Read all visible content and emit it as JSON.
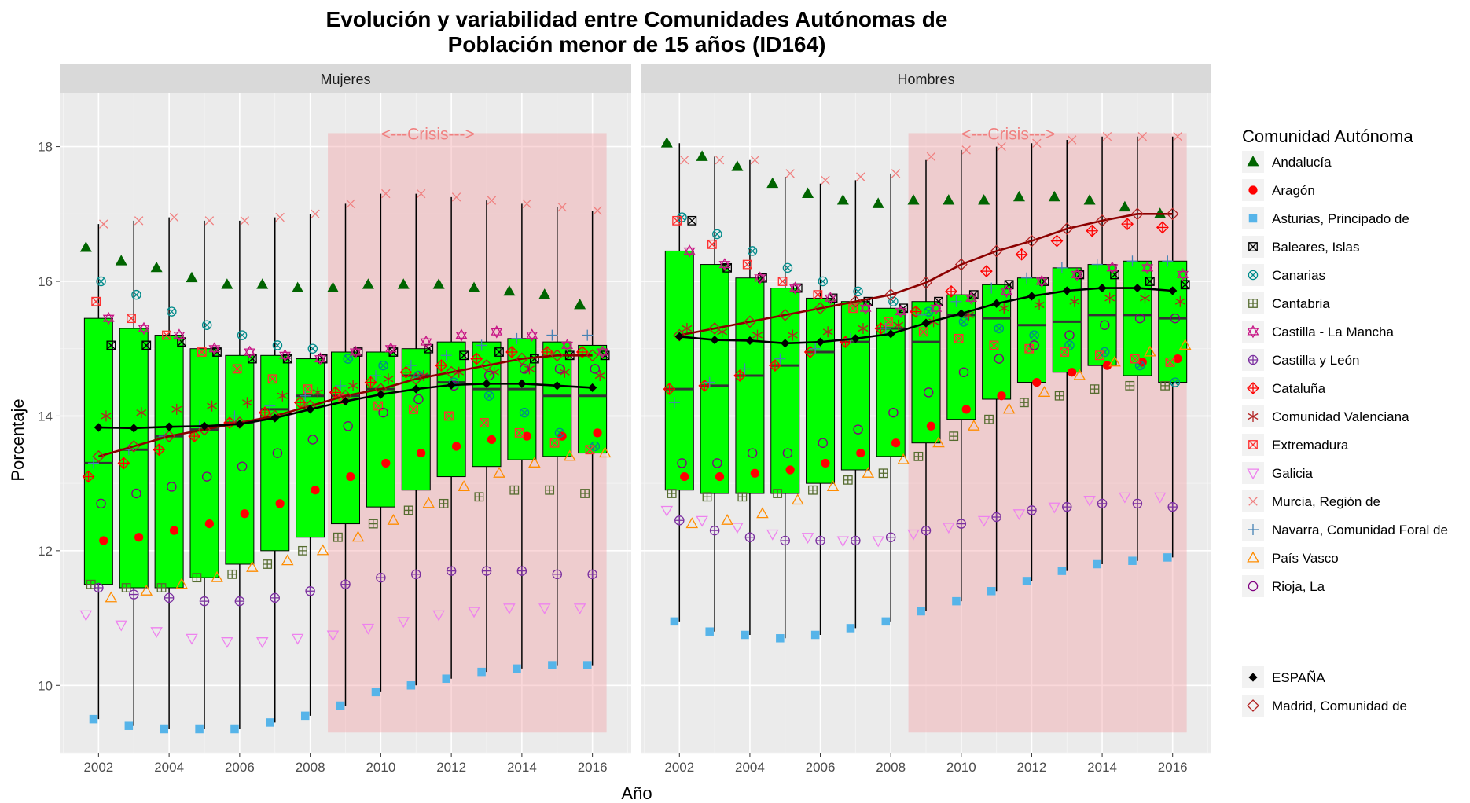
{
  "chart_data": {
    "type": "boxplot",
    "title_line1": "Evolución y variabilidad entre Comunidades Autónomas de",
    "title_line2": "Población menor de 15 años (ID164)",
    "xlabel": "Año",
    "ylabel": "Porcentaje",
    "x_ticks": [
      "2002",
      "2004",
      "2006",
      "2008",
      "2010",
      "2012",
      "2014",
      "2016"
    ],
    "y_ticks": [
      "10",
      "12",
      "14",
      "16",
      "18"
    ],
    "ylim": [
      9.0,
      18.8
    ],
    "xlim": [
      2000.9,
      2017.1
    ],
    "crisis_label": "<---Crisis--->",
    "crisis_range": [
      2008.5,
      2016.4
    ],
    "crisis_y": [
      9.3,
      18.2
    ],
    "legend_title": "Comunidad Autónoma",
    "legend_items": [
      {
        "label": "Andalucía",
        "shape": "triangle",
        "color": "#006400"
      },
      {
        "label": "Aragón",
        "shape": "dot",
        "color": "#ff0000"
      },
      {
        "label": "Asturias, Principado de",
        "shape": "square",
        "color": "#56b4e9"
      },
      {
        "label": "Baleares, Islas",
        "shape": "square-x",
        "color": "#000000"
      },
      {
        "label": "Canarias",
        "shape": "circle-x",
        "color": "#008b8b"
      },
      {
        "label": "Cantabria",
        "shape": "square-plus",
        "color": "#556b2f"
      },
      {
        "label": "Castilla - La Mancha",
        "shape": "star6",
        "color": "#c71585"
      },
      {
        "label": "Castilla y León",
        "shape": "circle-plus",
        "color": "#7b2fa0"
      },
      {
        "label": "Cataluña",
        "shape": "diamond-plus",
        "color": "#ff0000"
      },
      {
        "label": "Comunidad Valenciana",
        "shape": "asterisk",
        "color": "#b22222"
      },
      {
        "label": "Extremadura",
        "shape": "square-x",
        "color": "#ff3030"
      },
      {
        "label": "Galicia",
        "shape": "triangle-down",
        "color": "#ee82ee"
      },
      {
        "label": "Murcia, Región de",
        "shape": "x",
        "color": "#f08080"
      },
      {
        "label": "Navarra, Comunidad Foral de",
        "shape": "plus",
        "color": "#4682b4"
      },
      {
        "label": "País Vasco",
        "shape": "triangle-open",
        "color": "#ff8c00"
      },
      {
        "label": "Rioja, La",
        "shape": "circle",
        "color": "#800080"
      }
    ],
    "legend_items2": [
      {
        "label": "ESPAÑA",
        "shape": "diamond-fill",
        "color": "#000000"
      },
      {
        "label": "Madrid, Comunidad de",
        "shape": "diamond",
        "color": "#b22222"
      }
    ],
    "colors": {
      "box_fill": "#00ff00",
      "panel_bg": "#ebebeb",
      "strip_bg": "#d9d9d9",
      "crisis_fill": "#f4a3a8",
      "spain_line": "#000000",
      "madrid_line": "#8b0000"
    },
    "panels": [
      {
        "name": "Mujeres",
        "boxes": [
          {
            "year": 2002,
            "min": 9.5,
            "q1": 11.5,
            "median": 13.3,
            "q3": 15.45,
            "max": 16.85
          },
          {
            "year": 2003,
            "min": 9.4,
            "q1": 11.45,
            "median": 13.5,
            "q3": 15.3,
            "max": 16.9
          },
          {
            "year": 2004,
            "min": 9.35,
            "q1": 11.45,
            "median": 13.7,
            "q3": 15.2,
            "max": 16.95
          },
          {
            "year": 2005,
            "min": 9.35,
            "q1": 11.6,
            "median": 13.8,
            "q3": 15.0,
            "max": 16.9
          },
          {
            "year": 2006,
            "min": 9.35,
            "q1": 11.8,
            "median": 13.9,
            "q3": 14.9,
            "max": 16.9
          },
          {
            "year": 2007,
            "min": 9.45,
            "q1": 12.0,
            "median": 14.1,
            "q3": 14.9,
            "max": 16.95
          },
          {
            "year": 2008,
            "min": 9.55,
            "q1": 12.2,
            "median": 14.3,
            "q3": 14.85,
            "max": 17.0
          },
          {
            "year": 2009,
            "min": 9.7,
            "q1": 12.4,
            "median": 14.3,
            "q3": 14.95,
            "max": 17.15
          },
          {
            "year": 2010,
            "min": 9.9,
            "q1": 12.65,
            "median": 14.4,
            "q3": 14.95,
            "max": 17.3
          },
          {
            "year": 2011,
            "min": 10.0,
            "q1": 12.9,
            "median": 14.6,
            "q3": 15.0,
            "max": 17.3
          },
          {
            "year": 2012,
            "min": 10.1,
            "q1": 13.1,
            "median": 14.5,
            "q3": 15.1,
            "max": 17.25
          },
          {
            "year": 2013,
            "min": 10.2,
            "q1": 13.25,
            "median": 14.4,
            "q3": 15.1,
            "max": 17.2
          },
          {
            "year": 2014,
            "min": 10.25,
            "q1": 13.35,
            "median": 14.4,
            "q3": 15.15,
            "max": 17.15
          },
          {
            "year": 2015,
            "min": 10.3,
            "q1": 13.4,
            "median": 14.3,
            "q3": 15.1,
            "max": 17.1
          },
          {
            "year": 2016,
            "min": 10.3,
            "q1": 13.45,
            "median": 14.3,
            "q3": 15.05,
            "max": 17.05
          }
        ],
        "spain": [
          13.83,
          13.82,
          13.84,
          13.85,
          13.88,
          13.97,
          14.1,
          14.22,
          14.32,
          14.4,
          14.46,
          14.48,
          14.48,
          14.45,
          14.42
        ],
        "madrid": [
          13.4,
          13.55,
          13.7,
          13.8,
          13.9,
          14.0,
          14.15,
          14.3,
          14.4,
          14.55,
          14.65,
          14.75,
          14.85,
          14.9,
          14.9
        ],
        "series": {
          "Andalucía": [
            16.5,
            16.3,
            16.2,
            16.05,
            15.95,
            15.95,
            15.9,
            15.9,
            15.95,
            15.95,
            15.95,
            15.9,
            15.85,
            15.8,
            15.65
          ],
          "Aragón": [
            12.15,
            12.2,
            12.3,
            12.4,
            12.55,
            12.7,
            12.9,
            13.1,
            13.3,
            13.45,
            13.55,
            13.65,
            13.7,
            13.7,
            13.75
          ],
          "Asturias, Principado de": [
            9.5,
            9.4,
            9.35,
            9.35,
            9.35,
            9.45,
            9.55,
            9.7,
            9.9,
            10.0,
            10.1,
            10.2,
            10.25,
            10.3,
            10.3
          ],
          "Baleares, Islas": [
            15.05,
            15.05,
            15.1,
            14.95,
            14.85,
            14.85,
            14.85,
            14.95,
            14.95,
            15.0,
            14.9,
            14.95,
            14.85,
            14.9,
            14.9
          ],
          "Canarias": [
            16.0,
            15.8,
            15.55,
            15.35,
            15.2,
            15.05,
            15.0,
            14.85,
            14.75,
            14.6,
            14.5,
            14.3,
            14.05,
            13.75,
            13.55
          ],
          "Cantabria": [
            11.5,
            11.45,
            11.45,
            11.6,
            11.65,
            11.8,
            12.0,
            12.2,
            12.4,
            12.6,
            12.7,
            12.8,
            12.9,
            12.9,
            12.85
          ],
          "Castilla - La Mancha": [
            15.45,
            15.3,
            15.2,
            15.0,
            14.95,
            14.9,
            14.85,
            14.95,
            15.0,
            15.1,
            15.2,
            15.25,
            15.2,
            15.05,
            14.95
          ],
          "Castilla y León": [
            11.45,
            11.35,
            11.3,
            11.25,
            11.25,
            11.3,
            11.4,
            11.5,
            11.6,
            11.65,
            11.7,
            11.7,
            11.7,
            11.65,
            11.65
          ],
          "Cataluña": [
            13.1,
            13.3,
            13.5,
            13.7,
            13.9,
            14.05,
            14.2,
            14.35,
            14.5,
            14.65,
            14.75,
            14.85,
            14.95,
            14.95,
            14.95
          ],
          "Comunidad Valenciana": [
            14.0,
            14.05,
            14.1,
            14.15,
            14.2,
            14.3,
            14.35,
            14.45,
            14.55,
            14.6,
            14.65,
            14.65,
            14.7,
            14.65,
            14.6
          ],
          "Extremadura": [
            15.7,
            15.45,
            15.2,
            14.95,
            14.7,
            14.55,
            14.4,
            14.25,
            14.15,
            14.1,
            14.0,
            13.9,
            13.75,
            13.6,
            13.5
          ],
          "Galicia": [
            11.05,
            10.9,
            10.8,
            10.7,
            10.65,
            10.65,
            10.7,
            10.75,
            10.85,
            10.95,
            11.05,
            11.1,
            11.15,
            11.15,
            11.15
          ],
          "Murcia, Región de": [
            16.85,
            16.9,
            16.95,
            16.9,
            16.9,
            16.95,
            17.0,
            17.15,
            17.3,
            17.3,
            17.25,
            17.2,
            17.15,
            17.1,
            17.05
          ],
          "Navarra, Comunidad Foral de": [
            13.3,
            13.5,
            13.7,
            13.85,
            14.0,
            14.15,
            14.3,
            14.45,
            14.6,
            14.75,
            14.9,
            15.05,
            15.15,
            15.2,
            15.2
          ],
          "País Vasco": [
            11.3,
            11.4,
            11.5,
            11.6,
            11.75,
            11.85,
            12.0,
            12.2,
            12.45,
            12.7,
            12.95,
            13.15,
            13.3,
            13.4,
            13.45
          ],
          "Rioja, La": [
            12.7,
            12.85,
            12.95,
            13.1,
            13.25,
            13.45,
            13.65,
            13.85,
            14.05,
            14.25,
            14.45,
            14.6,
            14.7,
            14.7,
            14.7
          ]
        }
      },
      {
        "name": "Hombres",
        "boxes": [
          {
            "year": 2002,
            "min": 10.95,
            "q1": 12.9,
            "median": 14.4,
            "q3": 16.45,
            "max": 18.05
          },
          {
            "year": 2003,
            "min": 10.8,
            "q1": 12.85,
            "median": 14.45,
            "q3": 16.25,
            "max": 17.85
          },
          {
            "year": 2004,
            "min": 10.75,
            "q1": 12.85,
            "median": 14.6,
            "q3": 16.05,
            "max": 17.8
          },
          {
            "year": 2005,
            "min": 10.7,
            "q1": 12.85,
            "median": 14.75,
            "q3": 15.9,
            "max": 17.55
          },
          {
            "year": 2006,
            "min": 10.75,
            "q1": 13.0,
            "median": 14.95,
            "q3": 15.75,
            "max": 17.45
          },
          {
            "year": 2007,
            "min": 10.85,
            "q1": 13.2,
            "median": 15.1,
            "q3": 15.7,
            "max": 17.5
          },
          {
            "year": 2008,
            "min": 10.95,
            "q1": 13.4,
            "median": 15.3,
            "q3": 15.6,
            "max": 17.6
          },
          {
            "year": 2009,
            "min": 11.1,
            "q1": 13.6,
            "median": 15.1,
            "q3": 15.7,
            "max": 17.8
          },
          {
            "year": 2010,
            "min": 11.25,
            "q1": 13.95,
            "median": 15.5,
            "q3": 15.8,
            "max": 17.95
          },
          {
            "year": 2011,
            "min": 11.4,
            "q1": 14.25,
            "median": 15.45,
            "q3": 15.95,
            "max": 18.0
          },
          {
            "year": 2012,
            "min": 11.55,
            "q1": 14.5,
            "median": 15.35,
            "q3": 16.05,
            "max": 18.05
          },
          {
            "year": 2013,
            "min": 11.7,
            "q1": 14.65,
            "median": 15.4,
            "q3": 16.2,
            "max": 18.1
          },
          {
            "year": 2014,
            "min": 11.8,
            "q1": 14.75,
            "median": 15.5,
            "q3": 16.25,
            "max": 18.15
          },
          {
            "year": 2015,
            "min": 11.85,
            "q1": 14.6,
            "median": 15.5,
            "q3": 16.3,
            "max": 18.15
          },
          {
            "year": 2016,
            "min": 11.9,
            "q1": 14.5,
            "median": 15.45,
            "q3": 16.3,
            "max": 18.15
          }
        ],
        "spain": [
          15.18,
          15.13,
          15.12,
          15.08,
          15.1,
          15.15,
          15.22,
          15.38,
          15.52,
          15.67,
          15.78,
          15.86,
          15.9,
          15.9,
          15.86
        ],
        "madrid": [
          15.2,
          15.3,
          15.4,
          15.5,
          15.6,
          15.7,
          15.8,
          15.98,
          16.25,
          16.45,
          16.6,
          16.78,
          16.9,
          17.0,
          17.0
        ],
        "series": {
          "Andalucía": [
            18.05,
            17.85,
            17.7,
            17.45,
            17.3,
            17.2,
            17.15,
            17.2,
            17.2,
            17.2,
            17.25,
            17.25,
            17.2,
            17.1,
            17.0
          ],
          "Aragón": [
            13.1,
            13.1,
            13.15,
            13.2,
            13.3,
            13.45,
            13.6,
            13.85,
            14.1,
            14.3,
            14.5,
            14.65,
            14.75,
            14.8,
            14.85
          ],
          "Asturias, Principado de": [
            10.95,
            10.8,
            10.75,
            10.7,
            10.75,
            10.85,
            10.95,
            11.1,
            11.25,
            11.4,
            11.55,
            11.7,
            11.8,
            11.85,
            11.9
          ],
          "Baleares, Islas": [
            16.9,
            16.2,
            16.05,
            15.9,
            15.75,
            15.7,
            15.6,
            15.7,
            15.8,
            15.95,
            16.0,
            16.1,
            16.1,
            16.0,
            15.95
          ],
          "Canarias": [
            16.95,
            16.7,
            16.45,
            16.2,
            16.0,
            15.85,
            15.7,
            15.55,
            15.4,
            15.3,
            15.2,
            15.05,
            14.95,
            14.75,
            14.5
          ],
          "Cantabria": [
            12.85,
            12.8,
            12.8,
            12.85,
            12.9,
            13.05,
            13.15,
            13.4,
            13.7,
            13.95,
            14.2,
            14.3,
            14.4,
            14.45,
            14.45
          ],
          "Castilla - La Mancha": [
            16.45,
            16.25,
            16.05,
            15.9,
            15.75,
            15.6,
            15.55,
            15.6,
            15.75,
            15.85,
            16.0,
            16.1,
            16.2,
            16.2,
            16.1
          ],
          "Castilla y León": [
            12.45,
            12.3,
            12.2,
            12.15,
            12.15,
            12.15,
            12.2,
            12.3,
            12.4,
            12.5,
            12.6,
            12.65,
            12.7,
            12.7,
            12.65
          ],
          "Cataluña": [
            14.4,
            14.45,
            14.6,
            14.75,
            14.95,
            15.1,
            15.3,
            15.55,
            15.85,
            16.15,
            16.4,
            16.6,
            16.75,
            16.85,
            16.8
          ],
          "Comunidad Valenciana": [
            15.3,
            15.25,
            15.2,
            15.2,
            15.25,
            15.3,
            15.35,
            15.4,
            15.5,
            15.6,
            15.65,
            15.7,
            15.75,
            15.75,
            15.7
          ],
          "Extremadura": [
            16.9,
            16.55,
            16.25,
            16.0,
            15.8,
            15.6,
            15.4,
            15.25,
            15.15,
            15.05,
            15.0,
            14.95,
            14.9,
            14.85,
            14.8
          ],
          "Galicia": [
            12.6,
            12.45,
            12.35,
            12.25,
            12.2,
            12.15,
            12.15,
            12.25,
            12.35,
            12.45,
            12.55,
            12.65,
            12.75,
            12.8,
            12.8
          ],
          "Murcia, Región de": [
            17.8,
            17.8,
            17.8,
            17.6,
            17.5,
            17.55,
            17.6,
            17.85,
            17.95,
            18.0,
            18.05,
            18.1,
            18.15,
            18.15,
            18.15
          ],
          "Navarra, Comunidad Foral de": [
            14.2,
            14.5,
            14.7,
            14.85,
            15.0,
            15.15,
            15.3,
            15.5,
            15.7,
            15.9,
            16.05,
            16.2,
            16.25,
            16.3,
            16.3
          ],
          "País Vasco": [
            12.4,
            12.45,
            12.55,
            12.75,
            12.95,
            13.15,
            13.35,
            13.6,
            13.85,
            14.1,
            14.35,
            14.6,
            14.8,
            14.95,
            15.05
          ],
          "Rioja, La": [
            13.3,
            13.3,
            13.45,
            13.45,
            13.6,
            13.8,
            14.05,
            14.35,
            14.65,
            14.85,
            15.05,
            15.2,
            15.35,
            15.45,
            15.45
          ]
        }
      }
    ]
  }
}
